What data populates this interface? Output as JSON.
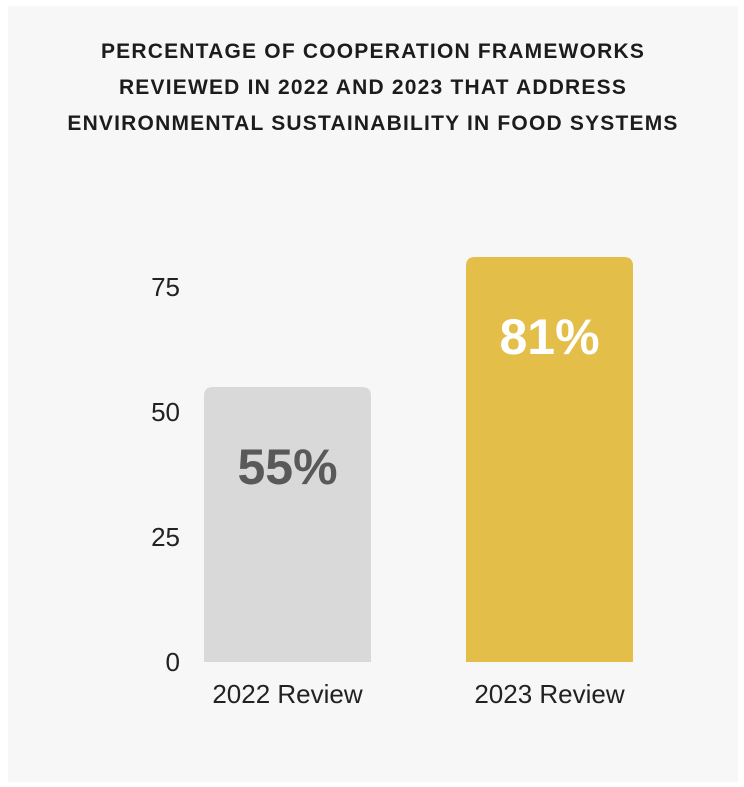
{
  "chart_data": {
    "type": "bar",
    "title_lines": [
      "PERCENTAGE OF COOPERATION FRAMEWORKS",
      "REVIEWED IN 2022 AND 2023 THAT ADDRESS",
      "ENVIRONMENTAL SUSTAINABILITY IN FOOD SYSTEMS"
    ],
    "categories": [
      "2022 Review",
      "2023 Review"
    ],
    "values": [
      55,
      81
    ],
    "data_labels": [
      "55%",
      "81%"
    ],
    "bar_colors": [
      "#d9d9d9",
      "#e3be48"
    ],
    "label_colors": [
      "#595959",
      "#ffffff"
    ],
    "yticks": [
      0,
      25,
      50,
      75
    ],
    "ytick_labels": [
      "0",
      "25",
      "50",
      "75"
    ],
    "ylim": [
      0,
      81
    ],
    "xlabel": "",
    "ylabel": "",
    "grid": false,
    "legend": "none"
  }
}
